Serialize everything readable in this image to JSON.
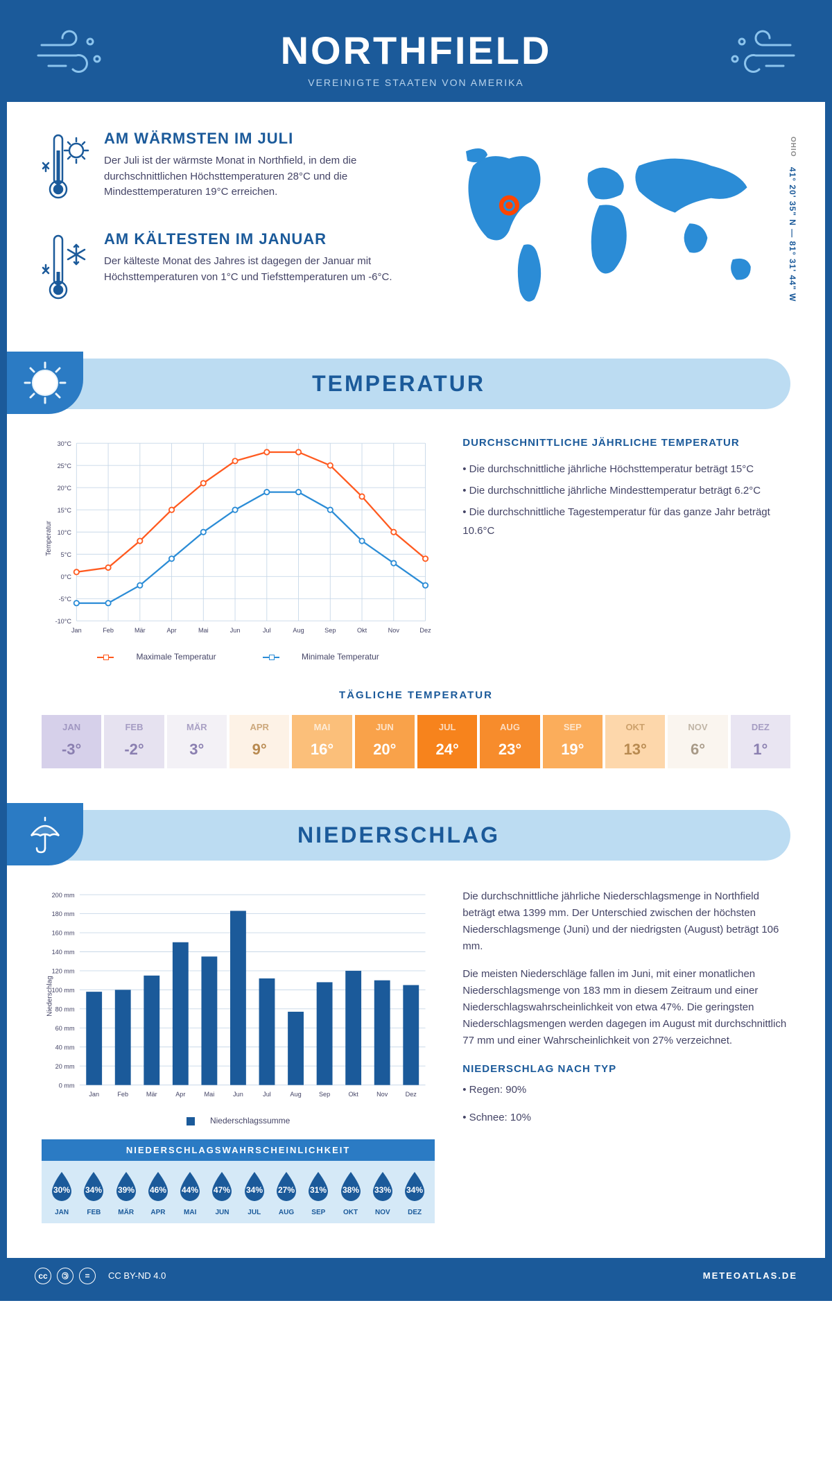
{
  "header": {
    "title": "NORTHFIELD",
    "subtitle": "VEREINIGTE STAATEN VON AMERIKA"
  },
  "location": {
    "state": "OHIO",
    "coords": "41° 20' 35\" N — 81° 31' 44\" W"
  },
  "intro": {
    "warm": {
      "title": "AM WÄRMSTEN IM JULI",
      "text": "Der Juli ist der wärmste Monat in Northfield, in dem die durchschnittlichen Höchsttemperaturen 28°C und die Mindesttemperaturen 19°C erreichen."
    },
    "cold": {
      "title": "AM KÄLTESTEN IM JANUAR",
      "text": "Der kälteste Monat des Jahres ist dagegen der Januar mit Höchsttemperaturen von 1°C und Tiefsttemperaturen um -6°C."
    }
  },
  "temp_section": {
    "heading": "TEMPERATUR",
    "chart": {
      "months": [
        "Jan",
        "Feb",
        "Mär",
        "Apr",
        "Mai",
        "Jun",
        "Jul",
        "Aug",
        "Sep",
        "Okt",
        "Nov",
        "Dez"
      ],
      "max": [
        1,
        2,
        8,
        15,
        21,
        26,
        28,
        28,
        25,
        18,
        10,
        4
      ],
      "min": [
        -6,
        -6,
        -2,
        4,
        10,
        15,
        19,
        19,
        15,
        8,
        3,
        -2
      ],
      "max_color": "#ff5a1f",
      "min_color": "#2b8cd6",
      "ylim": [
        -10,
        30
      ],
      "ytick_step": 5,
      "grid_color": "#c8d8e8",
      "background": "#ffffff",
      "ylabel": "Temperatur",
      "legend_max": "Maximale Temperatur",
      "legend_min": "Minimale Temperatur"
    },
    "info": {
      "heading": "DURCHSCHNITTLICHE JÄHRLICHE TEMPERATUR",
      "b1": "• Die durchschnittliche jährliche Höchsttemperatur beträgt 15°C",
      "b2": "• Die durchschnittliche jährliche Mindesttemperatur beträgt 6.2°C",
      "b3": "• Die durchschnittliche Tagestemperatur für das ganze Jahr beträgt 10.6°C"
    },
    "daily": {
      "heading": "TÄGLICHE TEMPERATUR",
      "months": [
        "JAN",
        "FEB",
        "MÄR",
        "APR",
        "MAI",
        "JUN",
        "JUL",
        "AUG",
        "SEP",
        "OKT",
        "NOV",
        "DEZ"
      ],
      "values": [
        "-3°",
        "-2°",
        "3°",
        "9°",
        "16°",
        "20°",
        "24°",
        "23°",
        "19°",
        "13°",
        "6°",
        "1°"
      ],
      "bg_colors": [
        "#d6d0ea",
        "#e6e2f0",
        "#f3f1f6",
        "#fdf2e6",
        "#fbbf7a",
        "#f9a24a",
        "#f7831c",
        "#f78c2c",
        "#fbad5b",
        "#fdd7ab",
        "#faf5ef",
        "#e9e5f2"
      ],
      "text_colors": [
        "#8a7fb0",
        "#8a7fb0",
        "#8a7fb0",
        "#b88a50",
        "#fff",
        "#fff",
        "#fff",
        "#fff",
        "#fff",
        "#b88a50",
        "#a89a88",
        "#8a7fb0"
      ]
    }
  },
  "precip_section": {
    "heading": "NIEDERSCHLAG",
    "chart": {
      "months": [
        "Jan",
        "Feb",
        "Mär",
        "Apr",
        "Mai",
        "Jun",
        "Jul",
        "Aug",
        "Sep",
        "Okt",
        "Nov",
        "Dez"
      ],
      "values": [
        98,
        100,
        115,
        150,
        135,
        183,
        112,
        77,
        108,
        120,
        110,
        105
      ],
      "bar_color": "#1b5a9a",
      "ylim": [
        0,
        200
      ],
      "ytick_step": 20,
      "grid_color": "#c8d8e8",
      "ylabel": "Niederschlag",
      "legend": "Niederschlagssumme"
    },
    "info": {
      "p1": "Die durchschnittliche jährliche Niederschlagsmenge in Northfield beträgt etwa 1399 mm. Der Unterschied zwischen der höchsten Niederschlagsmenge (Juni) und der niedrigsten (August) beträgt 106 mm.",
      "p2": "Die meisten Niederschläge fallen im Juni, mit einer monatlichen Niederschlagsmenge von 183 mm in diesem Zeitraum und einer Niederschlagswahrscheinlichkeit von etwa 47%. Die geringsten Niederschlagsmengen werden dagegen im August mit durchschnittlich 77 mm und einer Wahrscheinlichkeit von 27% verzeichnet.",
      "type_heading": "NIEDERSCHLAG NACH TYP",
      "type1": "• Regen: 90%",
      "type2": "• Schnee: 10%"
    },
    "probability": {
      "heading": "NIEDERSCHLAGSWAHRSCHEINLICHKEIT",
      "months": [
        "JAN",
        "FEB",
        "MÄR",
        "APR",
        "MAI",
        "JUN",
        "JUL",
        "AUG",
        "SEP",
        "OKT",
        "NOV",
        "DEZ"
      ],
      "values": [
        "30%",
        "34%",
        "39%",
        "46%",
        "44%",
        "47%",
        "34%",
        "27%",
        "31%",
        "38%",
        "33%",
        "34%"
      ],
      "drop_color": "#1b5a9a"
    }
  },
  "footer": {
    "license": "CC BY-ND 4.0",
    "site": "METEOATLAS.DE"
  }
}
